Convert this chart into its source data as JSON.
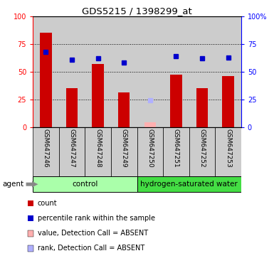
{
  "title": "GDS5215 / 1398299_at",
  "samples": [
    "GSM647246",
    "GSM647247",
    "GSM647248",
    "GSM647249",
    "GSM647250",
    "GSM647251",
    "GSM647252",
    "GSM647253"
  ],
  "bar_values": [
    85,
    35,
    57,
    31,
    null,
    47,
    35,
    46
  ],
  "bar_absent_values": [
    null,
    null,
    null,
    null,
    4,
    null,
    null,
    null
  ],
  "rank_values": [
    68,
    61,
    62,
    58,
    null,
    64,
    62,
    63
  ],
  "rank_absent_values": [
    null,
    null,
    null,
    null,
    24,
    null,
    null,
    null
  ],
  "bar_color": "#cc0000",
  "bar_absent_color": "#ffb0b0",
  "rank_color": "#0000cc",
  "rank_absent_color": "#b0b0ff",
  "group_control_color": "#aaffaa",
  "group_hydrogen_color": "#44dd44",
  "ylim": [
    0,
    100
  ],
  "yticks": [
    0,
    25,
    50,
    75,
    100
  ],
  "yticklabels_left": [
    "0",
    "25",
    "50",
    "75",
    "100"
  ],
  "yticklabels_right": [
    "0",
    "25",
    "50",
    "75",
    "100%"
  ],
  "col_bg_color": "#cccccc",
  "legend_items": [
    {
      "label": "count",
      "color": "#cc0000"
    },
    {
      "label": "percentile rank within the sample",
      "color": "#0000cc"
    },
    {
      "label": "value, Detection Call = ABSENT",
      "color": "#ffb0b0"
    },
    {
      "label": "rank, Detection Call = ABSENT",
      "color": "#b0b0ff"
    }
  ]
}
